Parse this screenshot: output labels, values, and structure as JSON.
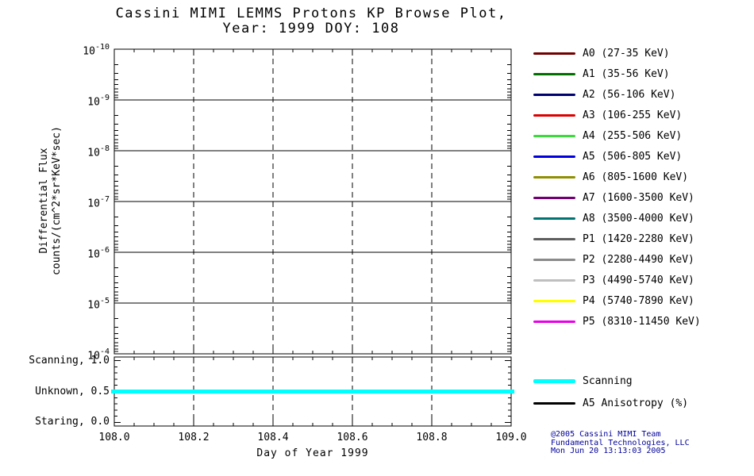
{
  "title": {
    "line1": "Cassini MIMI LEMMS Protons KP Browse Plot,",
    "line2": "Year: 1999 DOY: 108"
  },
  "axes": {
    "y_title_line1": "Differential Flux",
    "y_title_line2": "counts/(cm^2*sr*KeV*sec)",
    "x_title": "Day of Year 1999"
  },
  "chart_data": [
    {
      "name": "flux-panel",
      "type": "line",
      "title": "Cassini MIMI LEMMS Protons KP Browse Plot, Year: 1999 DOY: 108",
      "xlabel": "Day of Year 1999",
      "ylabel": "Differential Flux counts/(cm^2*sr*KeV*sec)",
      "x_range": [
        108.0,
        109.0
      ],
      "x_major_step": 0.2,
      "x_minor_step": 0.05,
      "x_tick_labels": [
        "108.0",
        "108.2",
        "108.4",
        "108.6",
        "108.8",
        "109.0"
      ],
      "y_scale": "log",
      "y_direction": "increasing-downward",
      "y_tick_exponents": [
        -10,
        -9,
        -8,
        -7,
        -6,
        -5,
        -4
      ],
      "grid": {
        "horizontal": "solid",
        "vertical": "dashed"
      },
      "series": []
    },
    {
      "name": "mode-panel",
      "type": "line",
      "x_range": [
        108.0,
        109.0
      ],
      "y_range": [
        0.0,
        1.0
      ],
      "y_minor_step": 0.1,
      "y_major_ticks": [
        {
          "label": "Scanning, 1.0",
          "value": 1.0
        },
        {
          "label": "Unknown, 0.5",
          "value": 0.5
        },
        {
          "label": "Staring, 0.0",
          "value": 0.0
        }
      ],
      "series": [
        {
          "name": "Scanning",
          "color": "#00FFFF",
          "width": 5,
          "x": [
            108.0,
            109.0
          ],
          "y": [
            0.5,
            0.5
          ]
        }
      ]
    }
  ],
  "legend": {
    "items": [
      {
        "label": "A0 (27-35 KeV)",
        "color": "#730000"
      },
      {
        "label": "A1 (35-56 KeV)",
        "color": "#006F00"
      },
      {
        "label": "A2 (56-106 KeV)",
        "color": "#00006E"
      },
      {
        "label": "A3 (106-255 KeV)",
        "color": "#DD0000"
      },
      {
        "label": "A4 (255-506 KeV)",
        "color": "#3BDB3B"
      },
      {
        "label": "A5 (506-805 KeV)",
        "color": "#0000DD"
      },
      {
        "label": "A6 (805-1600 KeV)",
        "color": "#8F8F00"
      },
      {
        "label": "A7 (1600-3500 KeV)",
        "color": "#730073"
      },
      {
        "label": "A8 (3500-4000 KeV)",
        "color": "#007373"
      },
      {
        "label": "P1 (1420-2280 KeV)",
        "color": "#5E5E5E"
      },
      {
        "label": "P2 (2280-4490 KeV)",
        "color": "#8A8A8A"
      },
      {
        "label": "P3 (4490-5740 KeV)",
        "color": "#BFBFBF"
      },
      {
        "label": "P4 (5740-7890 KeV)",
        "color": "#FFFF00"
      },
      {
        "label": "P5 (8310-11450 KeV)",
        "color": "#E800E8"
      }
    ]
  },
  "legend_lower": {
    "items": [
      {
        "label": "Scanning",
        "color": "#00FFFF",
        "thickness": 5
      },
      {
        "label": "A5 Anisotropy (%)",
        "color": "#000000",
        "thickness": 3
      }
    ]
  },
  "credits": {
    "line1": "@2005 Cassini MIMI Team",
    "line2": "Fundamental Technologies, LLC",
    "line3": "Mon Jun 20 13:13:03 2005",
    "color": "#00009B"
  }
}
